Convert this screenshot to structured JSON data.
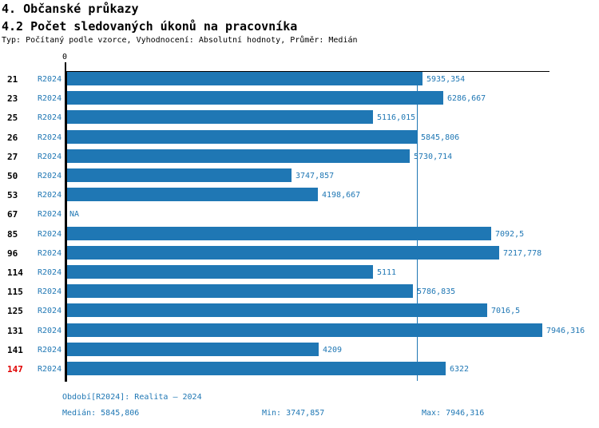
{
  "header": {
    "title1": "4. Občanské průkazy",
    "title2": "4.2 Počet sledovaných úkonů na pracovníka",
    "subtitle": "Typ: Počítaný podle vzorce, Vyhodnocení: Absolutní hodnoty, Průměr: Medián"
  },
  "colors": {
    "bar": "#1f77b4",
    "blue_text": "#1f77b4",
    "highlight_red": "#e00000",
    "axis_black": "#000000"
  },
  "chart_data": {
    "type": "bar",
    "orientation": "horizontal",
    "title": "4.2 Počet sledovaných úkonů na pracovníka",
    "series_name": "R2024",
    "x_axis": {
      "zero_label": "0",
      "min": 0
    },
    "grid": "median-line-only",
    "median_line_value": 5845.806,
    "categories": [
      "21",
      "23",
      "25",
      "26",
      "27",
      "50",
      "53",
      "67",
      "85",
      "96",
      "114",
      "115",
      "125",
      "131",
      "141",
      "147"
    ],
    "rows": [
      {
        "id": "21",
        "period": "R2024",
        "value": 5935.354,
        "label": "5935,354",
        "highlight": false
      },
      {
        "id": "23",
        "period": "R2024",
        "value": 6286.667,
        "label": "6286,667",
        "highlight": false
      },
      {
        "id": "25",
        "period": "R2024",
        "value": 5116.015,
        "label": "5116,015",
        "highlight": false
      },
      {
        "id": "26",
        "period": "R2024",
        "value": 5845.806,
        "label": "5845,806",
        "highlight": false
      },
      {
        "id": "27",
        "period": "R2024",
        "value": 5730.714,
        "label": "5730,714",
        "highlight": false
      },
      {
        "id": "50",
        "period": "R2024",
        "value": 3747.857,
        "label": "3747,857",
        "highlight": false
      },
      {
        "id": "53",
        "period": "R2024",
        "value": 4198.667,
        "label": "4198,667",
        "highlight": false
      },
      {
        "id": "67",
        "period": "R2024",
        "value": null,
        "label": "NA",
        "highlight": false
      },
      {
        "id": "85",
        "period": "R2024",
        "value": 7092.5,
        "label": "7092,5",
        "highlight": false
      },
      {
        "id": "96",
        "period": "R2024",
        "value": 7217.778,
        "label": "7217,778",
        "highlight": false
      },
      {
        "id": "114",
        "period": "R2024",
        "value": 5111,
        "label": "5111",
        "highlight": false
      },
      {
        "id": "115",
        "period": "R2024",
        "value": 5786.835,
        "label": "5786,835",
        "highlight": false
      },
      {
        "id": "125",
        "period": "R2024",
        "value": 7016.5,
        "label": "7016,5",
        "highlight": false
      },
      {
        "id": "131",
        "period": "R2024",
        "value": 7946.316,
        "label": "7946,316",
        "highlight": false
      },
      {
        "id": "141",
        "period": "R2024",
        "value": 4209,
        "label": "4209",
        "highlight": false
      },
      {
        "id": "147",
        "period": "R2024",
        "value": 6322,
        "label": "6322",
        "highlight": true
      }
    ],
    "stats": {
      "median": 5845.806,
      "min": 3747.857,
      "max": 7946.316
    }
  },
  "footer": {
    "period_line": "Období[R2024]: Realita – 2024",
    "median_label": "Medián: 5845,806",
    "min_label": "Min: 3747,857",
    "max_label": "Max: 7946,316"
  }
}
